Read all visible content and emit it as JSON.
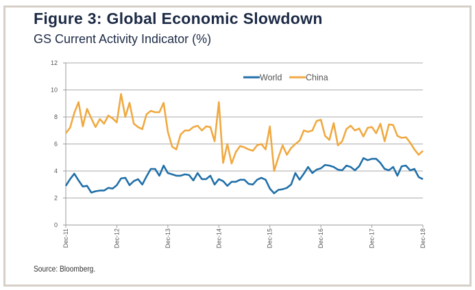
{
  "title": "Figure 3:  Global Economic Slowdown",
  "subtitle": "GS Current Activity Indicator (%)",
  "source": "Source: Bloomberg.",
  "chart_data": {
    "type": "line",
    "title": "Figure 3:  Global Economic Slowdown",
    "subtitle": "GS Current Activity Indicator (%)",
    "xlabel": "",
    "ylabel": "",
    "ylim": [
      0,
      12
    ],
    "yticks": [
      "0",
      "2",
      "4",
      "6",
      "8",
      "10",
      "12"
    ],
    "xticks": [
      "Dec-11",
      "Dec-12",
      "Dec-13",
      "Dec-14",
      "Dec-15",
      "Dec-16",
      "Dec-17",
      "Dec-18"
    ],
    "x_range": [
      "Dec-11",
      "Dec-18"
    ],
    "x_frequency": "monthly",
    "grid": "horizontal",
    "legend_position": "top-right",
    "series": [
      {
        "name": "World",
        "color": "#1f6fa8",
        "values": [
          2.9,
          3.4,
          3.8,
          3.3,
          2.85,
          2.9,
          2.4,
          2.5,
          2.55,
          2.55,
          2.75,
          2.7,
          2.95,
          3.45,
          3.5,
          2.95,
          3.25,
          3.4,
          3.0,
          3.6,
          4.15,
          4.15,
          3.65,
          4.4,
          3.85,
          3.75,
          3.65,
          3.65,
          3.75,
          3.7,
          3.3,
          3.85,
          3.4,
          3.4,
          3.65,
          3.0,
          3.4,
          3.25,
          2.9,
          3.2,
          3.2,
          3.35,
          3.35,
          3.05,
          3.0,
          3.35,
          3.5,
          3.35,
          2.7,
          2.35,
          2.6,
          2.65,
          2.75,
          3.0,
          3.85,
          3.35,
          3.8,
          4.3,
          3.85,
          4.1,
          4.2,
          4.45,
          4.4,
          4.3,
          4.1,
          4.05,
          4.4,
          4.3,
          4.05,
          4.35,
          4.95,
          4.8,
          4.9,
          4.9,
          4.6,
          4.15,
          4.05,
          4.3,
          3.65,
          4.35,
          4.4,
          4.05,
          4.15,
          3.55,
          3.4
        ]
      },
      {
        "name": "China",
        "color": "#f0a940",
        "values": [
          6.8,
          7.2,
          8.3,
          9.1,
          7.3,
          8.6,
          7.9,
          7.25,
          7.85,
          7.5,
          8.1,
          7.9,
          7.6,
          9.7,
          8.0,
          9.05,
          7.5,
          7.25,
          7.1,
          8.2,
          8.45,
          8.35,
          8.35,
          9.05,
          6.9,
          5.8,
          5.6,
          6.7,
          7.0,
          7.0,
          7.25,
          7.35,
          7.0,
          7.3,
          7.25,
          6.2,
          9.1,
          4.6,
          6.0,
          4.55,
          5.4,
          5.85,
          5.75,
          5.6,
          5.5,
          5.9,
          6.0,
          5.6,
          7.3,
          4.0,
          5.0,
          5.9,
          5.2,
          5.7,
          6.0,
          6.25,
          7.0,
          6.9,
          7.0,
          7.7,
          7.8,
          6.6,
          6.3,
          7.55,
          5.9,
          6.2,
          7.1,
          7.35,
          7.0,
          7.15,
          6.55,
          7.2,
          7.25,
          6.8,
          7.5,
          6.2,
          7.45,
          7.4,
          6.6,
          6.45,
          6.5,
          6.1,
          5.6,
          5.2,
          5.5
        ]
      }
    ]
  }
}
